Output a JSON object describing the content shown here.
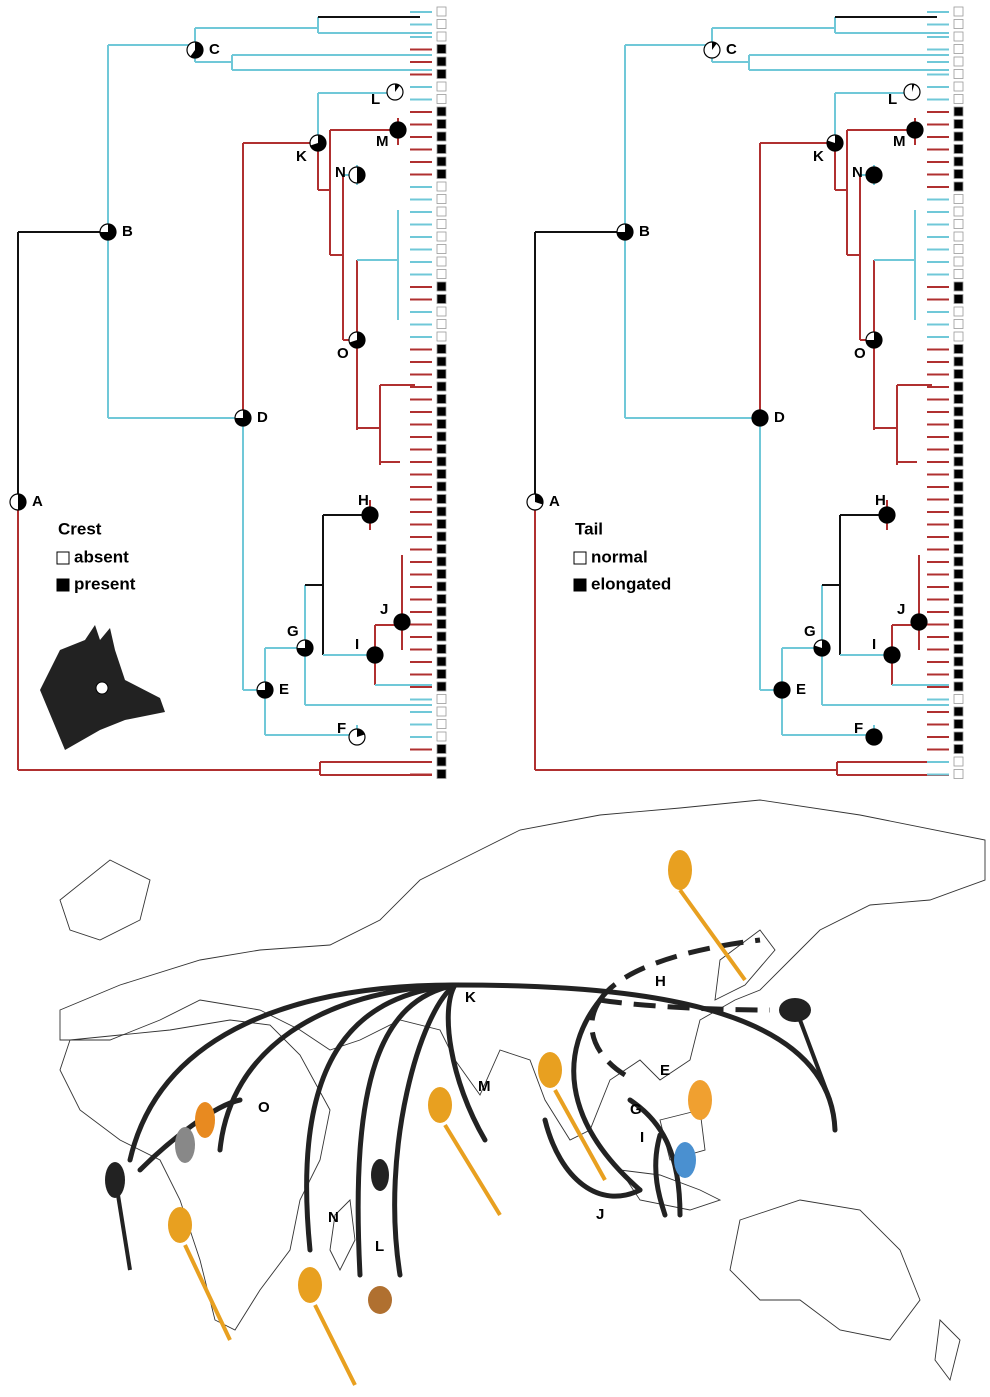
{
  "trees": [
    {
      "legend": {
        "title": "Crest",
        "items": [
          "absent",
          "present"
        ]
      },
      "nodes": [
        {
          "label": "A",
          "state": 0.5
        },
        {
          "label": "B",
          "state": 0.75
        },
        {
          "label": "C",
          "state": 0.6
        },
        {
          "label": "D",
          "state": 0.75
        },
        {
          "label": "E",
          "state": 0.75
        },
        {
          "label": "F",
          "state": 0.2
        },
        {
          "label": "G",
          "state": 0.75
        },
        {
          "label": "H",
          "state": 1
        },
        {
          "label": "I",
          "state": 1
        },
        {
          "label": "J",
          "state": 1
        },
        {
          "label": "K",
          "state": 0.7
        },
        {
          "label": "L",
          "state": 0.1
        },
        {
          "label": "M",
          "state": 1
        },
        {
          "label": "N",
          "state": 0.5
        },
        {
          "label": "O",
          "state": 0.7
        }
      ],
      "tips": [
        0,
        0,
        0,
        1,
        1,
        1,
        0,
        0,
        1,
        1,
        1,
        1,
        1,
        1,
        0,
        0,
        0,
        0,
        0,
        0,
        0,
        0,
        1,
        1,
        0,
        0,
        0,
        1,
        1,
        1,
        1,
        1,
        1,
        1,
        1,
        1,
        1,
        1,
        1,
        1,
        1,
        1,
        1,
        1,
        1,
        1,
        1,
        1,
        1,
        1,
        1,
        1,
        1,
        1,
        1,
        0,
        0,
        0,
        0,
        1,
        1,
        1
      ]
    },
    {
      "legend": {
        "title": "Tail",
        "items": [
          "normal",
          "elongated"
        ]
      },
      "nodes": [
        {
          "label": "A",
          "state": 0.3
        },
        {
          "label": "B",
          "state": 0.75
        },
        {
          "label": "C",
          "state": 0.1
        },
        {
          "label": "D",
          "state": 1
        },
        {
          "label": "E",
          "state": 1
        },
        {
          "label": "F",
          "state": 1
        },
        {
          "label": "G",
          "state": 0.8
        },
        {
          "label": "H",
          "state": 1
        },
        {
          "label": "I",
          "state": 1
        },
        {
          "label": "J",
          "state": 1
        },
        {
          "label": "K",
          "state": 0.8
        },
        {
          "label": "L",
          "state": 0.05
        },
        {
          "label": "M",
          "state": 1
        },
        {
          "label": "N",
          "state": 1
        },
        {
          "label": "O",
          "state": 0.75
        }
      ],
      "tips": [
        0,
        0,
        0,
        0,
        0,
        0,
        0,
        0,
        1,
        1,
        1,
        1,
        1,
        1,
        1,
        0,
        0,
        0,
        0,
        0,
        0,
        0,
        1,
        1,
        0,
        0,
        0,
        1,
        1,
        1,
        1,
        1,
        1,
        1,
        1,
        1,
        1,
        1,
        1,
        1,
        1,
        1,
        1,
        1,
        1,
        1,
        1,
        1,
        1,
        1,
        1,
        1,
        1,
        1,
        1,
        0,
        1,
        1,
        1,
        1,
        0,
        0
      ]
    }
  ],
  "map": {
    "labels": [
      "K",
      "M",
      "O",
      "N",
      "L",
      "H",
      "E",
      "G",
      "I",
      "J"
    ]
  }
}
